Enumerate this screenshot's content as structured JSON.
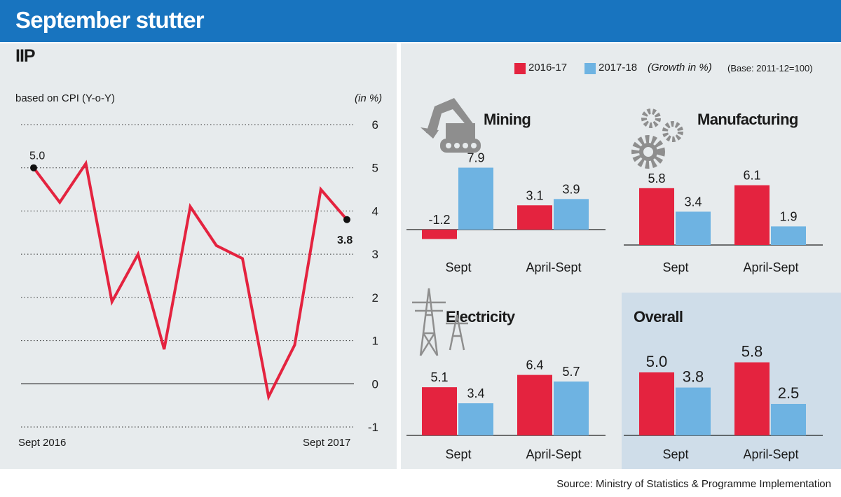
{
  "title": "September stutter",
  "left_chart": {
    "heading": "IIP",
    "subtitle": "based on CPI (Y-o-Y)",
    "unit": "(in %)",
    "x_start_label": "Sept 2016",
    "x_end_label": "Sept 2017",
    "first_label": "5.0",
    "last_label": "3.8"
  },
  "legend": {
    "series1": "2016-17",
    "series2": "2017-18",
    "note": "(Growth in %)",
    "base": "(Base: 2011-12=100)",
    "color1": "#e4233f",
    "color2": "#6eb3e2"
  },
  "source": "Source: Ministry of Statistics & Programme Implementation",
  "chart_data": [
    {
      "type": "line",
      "title": "IIP",
      "subtitle": "based on CPI (Y-o-Y)",
      "ylabel": "(in %)",
      "ylim": [
        -1,
        6
      ],
      "yticks": [
        "-1",
        "0",
        "1",
        "2",
        "3",
        "4",
        "5",
        "6"
      ],
      "xlabels": [
        "Sept 2016",
        "Sept 2017"
      ],
      "values": [
        5.0,
        4.2,
        5.1,
        1.9,
        3.0,
        0.8,
        4.1,
        3.2,
        2.9,
        -0.3,
        0.9,
        4.5,
        3.8
      ],
      "color": "#e4233f",
      "grid": true
    },
    {
      "type": "bar",
      "title": "Mining",
      "categories": [
        "Sept",
        "April-Sept"
      ],
      "series": [
        {
          "name": "2016-17",
          "values": [
            -1.2,
            3.1
          ],
          "labels": [
            "-1.2",
            "3.1"
          ]
        },
        {
          "name": "2017-18",
          "values": [
            7.9,
            3.9
          ],
          "labels": [
            "7.9",
            "3.9"
          ]
        }
      ]
    },
    {
      "type": "bar",
      "title": "Manufacturing",
      "categories": [
        "Sept",
        "April-Sept"
      ],
      "series": [
        {
          "name": "2016-17",
          "values": [
            5.8,
            6.1
          ],
          "labels": [
            "5.8",
            "6.1"
          ]
        },
        {
          "name": "2017-18",
          "values": [
            3.4,
            1.9
          ],
          "labels": [
            "3.4",
            "1.9"
          ]
        }
      ]
    },
    {
      "type": "bar",
      "title": "Electricity",
      "categories": [
        "Sept",
        "April-Sept"
      ],
      "series": [
        {
          "name": "2016-17",
          "values": [
            5.1,
            6.4
          ],
          "labels": [
            "5.1",
            "6.4"
          ]
        },
        {
          "name": "2017-18",
          "values": [
            3.4,
            5.7
          ],
          "labels": [
            "3.4",
            "5.7"
          ]
        }
      ]
    },
    {
      "type": "bar",
      "title": "Overall",
      "categories": [
        "Sept",
        "April-Sept"
      ],
      "series": [
        {
          "name": "2016-17",
          "values": [
            5.0,
            5.8
          ],
          "labels": [
            "5.0",
            "5.8"
          ]
        },
        {
          "name": "2017-18",
          "values": [
            3.8,
            2.5
          ],
          "labels": [
            "3.8",
            "2.5"
          ]
        }
      ]
    }
  ]
}
